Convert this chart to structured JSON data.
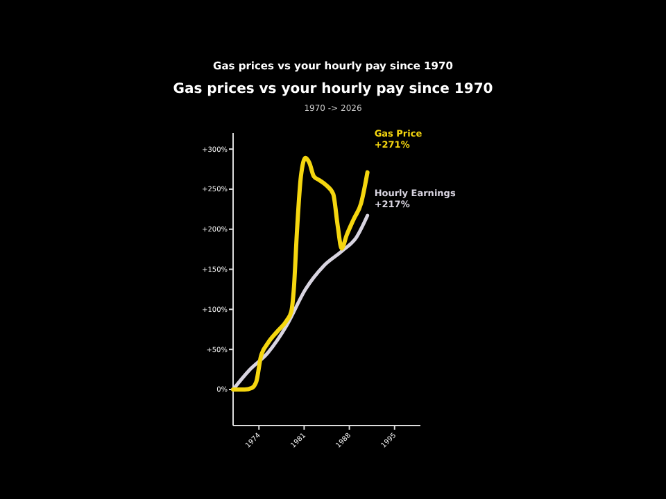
{
  "chart_data": {
    "type": "line",
    "title": "Gas prices vs your hourly pay since 1970",
    "subtitle": "1970 -> 2026",
    "annotations": [
      "Gas prices vs your hourly pay since 1970"
    ],
    "xlim": [
      1970,
      1999
    ],
    "xticks": [
      1974,
      1981,
      1988,
      1995
    ],
    "ylim": [
      -45,
      320
    ],
    "yticks": [
      {
        "value": 0,
        "label": "0%"
      },
      {
        "value": 50,
        "label": "+50%"
      },
      {
        "value": 100,
        "label": "+100%"
      },
      {
        "value": 150,
        "label": "+150%"
      },
      {
        "value": 200,
        "label": "+200%"
      },
      {
        "value": 250,
        "label": "+250%"
      },
      {
        "value": 300,
        "label": "+300%"
      }
    ],
    "grid": false,
    "series": [
      {
        "name": "Gas Price",
        "color": "#f5d60f",
        "x": [
          1970,
          1971.8,
          1972.9,
          1973.6,
          1974.3,
          1975.4,
          1976.8,
          1978.3,
          1979,
          1979.4,
          1979.9,
          1980.5,
          1981.2,
          1981.8,
          1982.5,
          1983.4,
          1984.4,
          1985.5,
          1986.2,
          1986.8,
          1987.6,
          1988.7,
          1989.8,
          1990.8
        ],
        "values": [
          0,
          0,
          2,
          10,
          41,
          58,
          72,
          86,
          97,
          125,
          199,
          266,
          289,
          283,
          266,
          261,
          255,
          244,
          204,
          176,
          193,
          213,
          232,
          271
        ],
        "value_labels": [
          null,
          null,
          null,
          null,
          null,
          null,
          null,
          null,
          null,
          null,
          null,
          null,
          null,
          null,
          null,
          null,
          null,
          null,
          null,
          null,
          null,
          null,
          null,
          "+271%"
        ]
      },
      {
        "name": "Hourly Earnings",
        "color": "#d8d4e0",
        "x": [
          1970,
          1972.5,
          1975.4,
          1978.3,
          1981.2,
          1984,
          1986.9,
          1989.1,
          1990.8
        ],
        "values": [
          0,
          24,
          46,
          80,
          125,
          154,
          173,
          190,
          217
        ],
        "value_labels": [
          null,
          null,
          null,
          null,
          null,
          null,
          null,
          null,
          "+217%"
        ]
      }
    ]
  }
}
